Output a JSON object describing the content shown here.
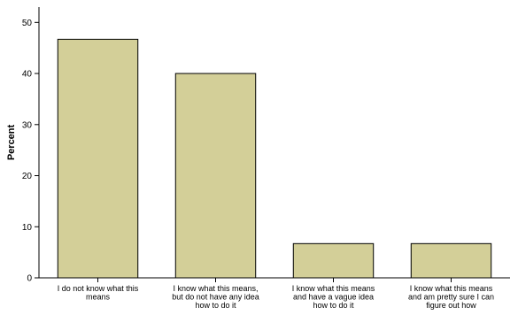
{
  "chart_data": {
    "type": "bar",
    "title": "",
    "xlabel": "",
    "ylabel": "Percent",
    "ylim": [
      0,
      53
    ],
    "yticks": [
      0,
      10,
      20,
      30,
      40,
      50
    ],
    "grid": false,
    "legend": "none",
    "categories": [
      [
        "I do not know what this",
        "means"
      ],
      [
        "I know what this means,",
        "but do not have any idea",
        "how to do it"
      ],
      [
        "I know what this means",
        "and have a vague idea",
        "how to  do it"
      ],
      [
        "I know what this means",
        "and am pretty sure I can",
        "figure out how"
      ]
    ],
    "values": [
      46.7,
      40.0,
      6.7,
      6.7
    ],
    "colors": {
      "bar_fill": "#d3cf98",
      "bar_stroke": "#000000",
      "axis": "#000000"
    }
  }
}
